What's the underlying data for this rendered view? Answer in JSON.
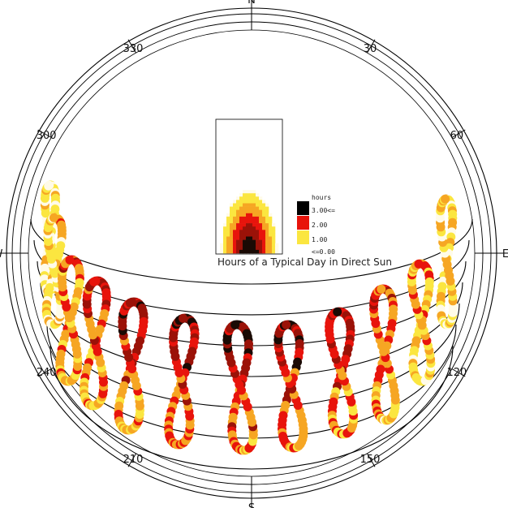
{
  "chart_data": {
    "type": "sunpath-heatmap",
    "title": "Hours of a Typical Day in Direct Sun",
    "compass": {
      "labels": [
        {
          "text": "N",
          "azimuth": 0
        },
        {
          "text": "30",
          "azimuth": 30
        },
        {
          "text": "60",
          "azimuth": 60
        },
        {
          "text": "E",
          "azimuth": 90
        },
        {
          "text": "120",
          "azimuth": 120
        },
        {
          "text": "150",
          "azimuth": 150
        },
        {
          "text": "S",
          "azimuth": 180
        },
        {
          "text": "210",
          "azimuth": 210
        },
        {
          "text": "240",
          "azimuth": 240
        },
        {
          "text": "W",
          "azimuth": 270
        },
        {
          "text": "300",
          "azimuth": 300
        },
        {
          "text": "330",
          "azimuth": 330
        }
      ]
    },
    "legend": {
      "unit": "hours",
      "entries": [
        {
          "label": "3.00<=",
          "color": "#000000"
        },
        {
          "label": "2.00",
          "color": "#e8140c"
        },
        {
          "label": "1.00",
          "color": "#fbe640"
        },
        {
          "label": "<=0.00",
          "color": "#ffffff"
        }
      ]
    },
    "color_scale": [
      "#fffbe8",
      "#fbe640",
      "#f6a623",
      "#e8140c",
      "#9b1208",
      "#1a0a04"
    ],
    "analemmas": [
      {
        "hour": 6,
        "intensity": 0.15
      },
      {
        "hour": 7,
        "intensity": 0.3
      },
      {
        "hour": 8,
        "intensity": 0.5
      },
      {
        "hour": 9,
        "intensity": 0.65
      },
      {
        "hour": 10,
        "intensity": 0.75
      },
      {
        "hour": 11,
        "intensity": 0.85
      },
      {
        "hour": 12,
        "intensity": 0.85
      },
      {
        "hour": 13,
        "intensity": 0.8
      },
      {
        "hour": 14,
        "intensity": 0.7
      },
      {
        "hour": 15,
        "intensity": 0.55
      },
      {
        "hour": 16,
        "intensity": 0.4
      },
      {
        "hour": 17,
        "intensity": 0.25
      }
    ]
  }
}
